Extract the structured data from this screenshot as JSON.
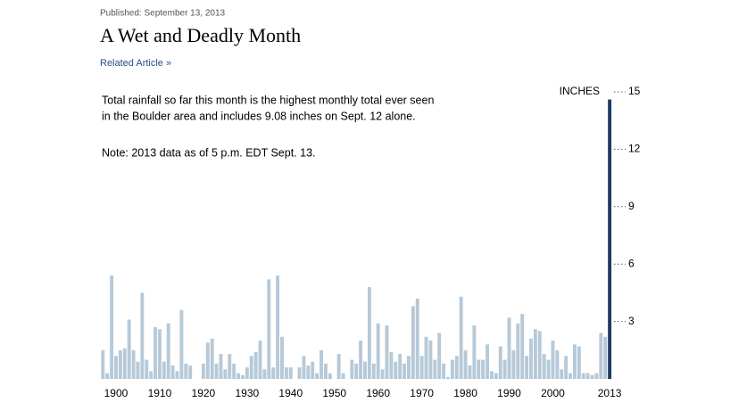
{
  "published": "Published: September 13, 2013",
  "related": "Related Article »",
  "chart_data": {
    "type": "bar",
    "title": "A Wet and Deadly Month",
    "annotations": [
      "Total rainfall so far this month is the highest monthly total ever seen",
      "in the Boulder area and includes 9.08 inches on Sept. 12 alone.",
      "Note: 2013 data as of 5 p.m. EDT Sept. 13."
    ],
    "y_label": "INCHES",
    "x": [
      1897,
      1898,
      1899,
      1900,
      1901,
      1902,
      1903,
      1904,
      1905,
      1906,
      1907,
      1908,
      1909,
      1910,
      1911,
      1912,
      1913,
      1914,
      1915,
      1916,
      1917,
      1918,
      1919,
      1920,
      1921,
      1922,
      1923,
      1924,
      1925,
      1926,
      1927,
      1928,
      1929,
      1930,
      1931,
      1932,
      1933,
      1934,
      1935,
      1936,
      1937,
      1938,
      1939,
      1940,
      1941,
      1942,
      1943,
      1944,
      1945,
      1946,
      1947,
      1948,
      1949,
      1950,
      1951,
      1952,
      1953,
      1954,
      1955,
      1956,
      1957,
      1958,
      1959,
      1960,
      1961,
      1962,
      1963,
      1964,
      1965,
      1966,
      1967,
      1968,
      1969,
      1970,
      1971,
      1972,
      1973,
      1974,
      1975,
      1976,
      1977,
      1978,
      1979,
      1980,
      1981,
      1982,
      1983,
      1984,
      1985,
      1986,
      1987,
      1988,
      1989,
      1990,
      1991,
      1992,
      1993,
      1994,
      1995,
      1996,
      1997,
      1998,
      1999,
      2000,
      2001,
      2002,
      2003,
      2004,
      2005,
      2006,
      2007,
      2008,
      2009,
      2010,
      2011,
      2012,
      2013
    ],
    "values": [
      1.5,
      0.3,
      5.4,
      1.2,
      1.5,
      1.6,
      3.1,
      1.5,
      0.9,
      4.5,
      1.0,
      0.4,
      2.7,
      2.6,
      0.9,
      2.9,
      0.7,
      0.4,
      3.6,
      0.8,
      0.7,
      0,
      0,
      0.8,
      1.9,
      2.1,
      0.8,
      1.3,
      0.5,
      1.3,
      0.8,
      0.3,
      0.2,
      0.6,
      1.2,
      1.4,
      2.0,
      0.5,
      5.2,
      0.6,
      5.4,
      2.2,
      0.6,
      0.6,
      0,
      0.6,
      1.2,
      0.7,
      0.9,
      0.3,
      1.5,
      0.8,
      0.3,
      0,
      1.3,
      0.3,
      0,
      1.0,
      0.8,
      2.0,
      0.9,
      4.8,
      0.8,
      2.9,
      0.5,
      2.8,
      1.4,
      0.9,
      1.3,
      0.8,
      1.2,
      3.8,
      4.2,
      1.2,
      2.2,
      2.0,
      1.0,
      2.4,
      0.8,
      0.1,
      1.0,
      1.2,
      4.3,
      1.5,
      0.7,
      2.8,
      1.0,
      1.0,
      1.8,
      0.4,
      0.3,
      1.7,
      1.0,
      3.2,
      1.5,
      2.9,
      3.4,
      1.2,
      2.1,
      2.6,
      2.5,
      1.3,
      1.0,
      2.0,
      1.5,
      0.5,
      1.2,
      0.3,
      1.8,
      1.7,
      0.3,
      0.3,
      0.2,
      0.3,
      2.4,
      2.2,
      14.6
    ],
    "color": "#b6c9d8",
    "last_color": "#1f3a63",
    "xlim": [
      1896,
      2014
    ],
    "xticks": [
      1900,
      1910,
      1920,
      1930,
      1940,
      1950,
      1960,
      1970,
      1980,
      1990,
      2000,
      2013
    ],
    "ylim": [
      0,
      15
    ],
    "yticks": [
      3,
      6,
      9,
      12,
      15
    ]
  }
}
